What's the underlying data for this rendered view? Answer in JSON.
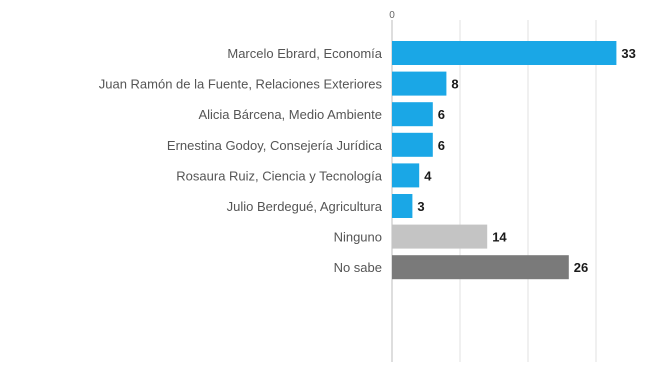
{
  "chart_data": {
    "type": "bar",
    "orientation": "horizontal",
    "title": "",
    "categories": [
      "Marcelo Ebrard, Economía",
      "Juan Ramón de la Fuente, Relaciones Exteriores",
      "Alicia Bárcena, Medio Ambiente",
      "Ernestina Godoy, Consejería Jurídica",
      "Rosaura Ruiz, Ciencia y Tecnología",
      "Julio Berdegué, Agricultura",
      "Ninguno",
      "No sabe"
    ],
    "values": [
      33,
      8,
      6,
      6,
      4,
      3,
      14,
      26
    ],
    "value_labels": [
      "33",
      "8",
      "6",
      "6",
      "4",
      "3",
      "14",
      "26"
    ],
    "bar_colors": [
      "#1aa7e6",
      "#1aa7e6",
      "#1aa7e6",
      "#1aa7e6",
      "#1aa7e6",
      "#1aa7e6",
      "#c4c4c4",
      "#7a7a7a"
    ],
    "x_tick_labels": [
      "0"
    ],
    "xlim": [
      0,
      35
    ],
    "grid": true,
    "xlabel": "",
    "ylabel": ""
  }
}
